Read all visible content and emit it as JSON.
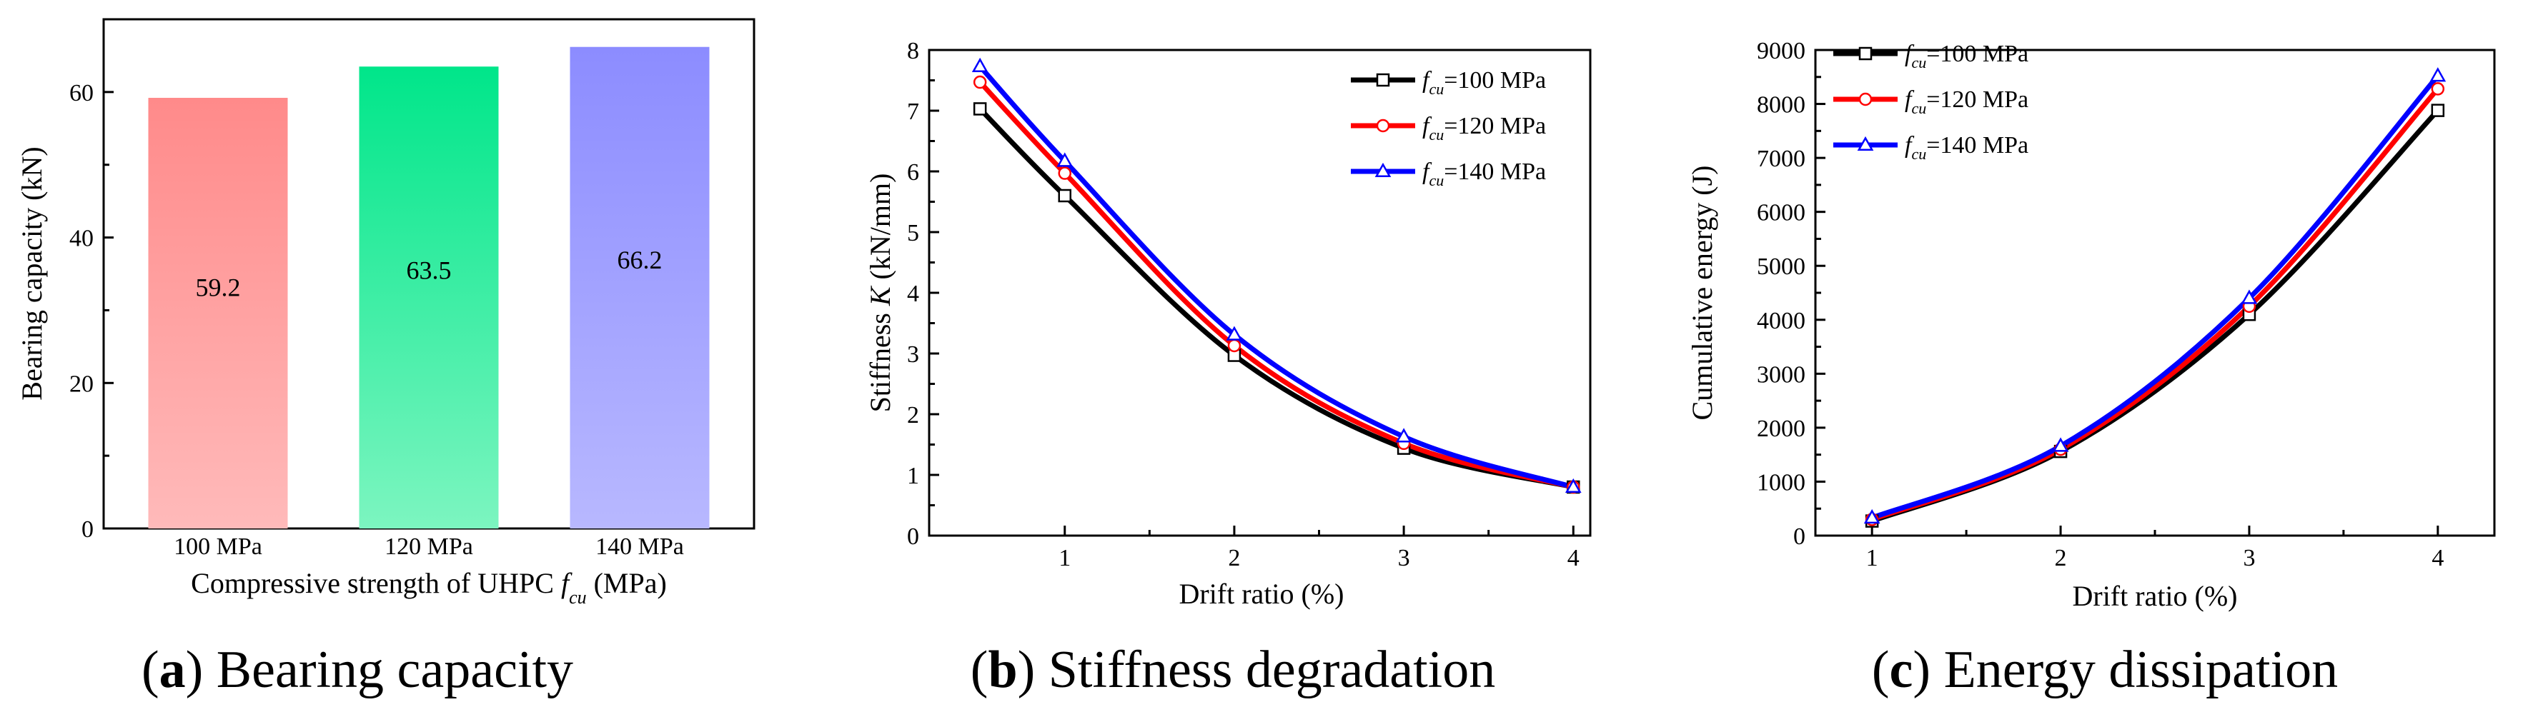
{
  "chart_data": [
    {
      "id": "a",
      "type": "bar",
      "caption_letter": "a",
      "caption_text": "Bearing capacity",
      "categories": [
        "100 MPa",
        "120 MPa",
        "140 MPa"
      ],
      "values": [
        59.2,
        63.5,
        66.2
      ],
      "value_labels": [
        "59.2",
        "63.5",
        "66.2"
      ],
      "colors": [
        [
          "#ff8a8a",
          "#ffbaba"
        ],
        [
          "#00e68a",
          "#7cf5c0"
        ],
        [
          "#8c8cff",
          "#b8b8ff"
        ]
      ],
      "xlabel_prefix": "Compressive strength of UHPC ",
      "xlabel_var": "f",
      "xlabel_sub": "cu",
      "xlabel_suffix": " (MPa)",
      "ylabel": "Bearing capacity (kN)",
      "ylim": [
        0,
        70
      ],
      "yticks": [
        0,
        20,
        40,
        60
      ],
      "ytick_labels": [
        "0",
        "20",
        "40",
        "60"
      ]
    },
    {
      "id": "b",
      "type": "line",
      "caption_letter": "b",
      "caption_text": "Stiffness degradation",
      "x": [
        0.5,
        1,
        2,
        3,
        4
      ],
      "series": [
        {
          "name": "=100 MPa",
          "color": "#000000",
          "marker": "square",
          "values": [
            7.03,
            5.6,
            2.97,
            1.44,
            0.8
          ]
        },
        {
          "name": "=120 MPa",
          "color": "#ff0000",
          "marker": "circle",
          "values": [
            7.47,
            5.97,
            3.13,
            1.52,
            0.8
          ]
        },
        {
          "name": "=140 MPa",
          "color": "#0000ff",
          "marker": "triangle",
          "values": [
            7.73,
            6.17,
            3.31,
            1.63,
            0.8
          ]
        }
      ],
      "legend_var": "f",
      "legend_sub": "cu",
      "ylabel_prefix": "Stiffness ",
      "ylabel_var": "K",
      "ylabel_suffix": " (kN/mm)",
      "xlabel": "Drift ratio (%)",
      "xlim": [
        0.2,
        4.1
      ],
      "ylim": [
        0,
        8
      ],
      "xticks": [
        1,
        2,
        3,
        4
      ],
      "xtick_labels": [
        "1",
        "2",
        "3",
        "4"
      ],
      "yticks": [
        0,
        1,
        2,
        3,
        4,
        5,
        6,
        7,
        8
      ],
      "ytick_labels": [
        "0",
        "1",
        "2",
        "3",
        "4",
        "5",
        "6",
        "7",
        "8"
      ],
      "legend_position": "top-right"
    },
    {
      "id": "c",
      "type": "line",
      "caption_letter": "c",
      "caption_text": "Energy dissipation",
      "x": [
        1,
        2,
        3,
        4
      ],
      "series": [
        {
          "name": "=100 MPa",
          "color": "#000000",
          "marker": "square",
          "values": [
            270,
            1560,
            4100,
            7880
          ]
        },
        {
          "name": "=120 MPa",
          "color": "#ff0000",
          "marker": "circle",
          "values": [
            300,
            1600,
            4250,
            8280
          ]
        },
        {
          "name": "=140 MPa",
          "color": "#0000ff",
          "marker": "triangle",
          "values": [
            330,
            1660,
            4400,
            8520
          ]
        }
      ],
      "legend_var": "f",
      "legend_sub": "cu",
      "ylabel": "Cumulative energy (J)",
      "xlabel": "Drift ratio (%)",
      "xlim": [
        0.7,
        4.3
      ],
      "ylim": [
        0,
        9000
      ],
      "xticks": [
        1,
        2,
        3,
        4
      ],
      "xtick_labels": [
        "1",
        "2",
        "3",
        "4"
      ],
      "yticks": [
        0,
        1000,
        2000,
        3000,
        4000,
        5000,
        6000,
        7000,
        8000,
        9000
      ],
      "ytick_labels": [
        "0",
        "1000",
        "2000",
        "3000",
        "4000",
        "5000",
        "6000",
        "7000",
        "8000",
        "9000"
      ],
      "legend_position": "top-left"
    }
  ]
}
